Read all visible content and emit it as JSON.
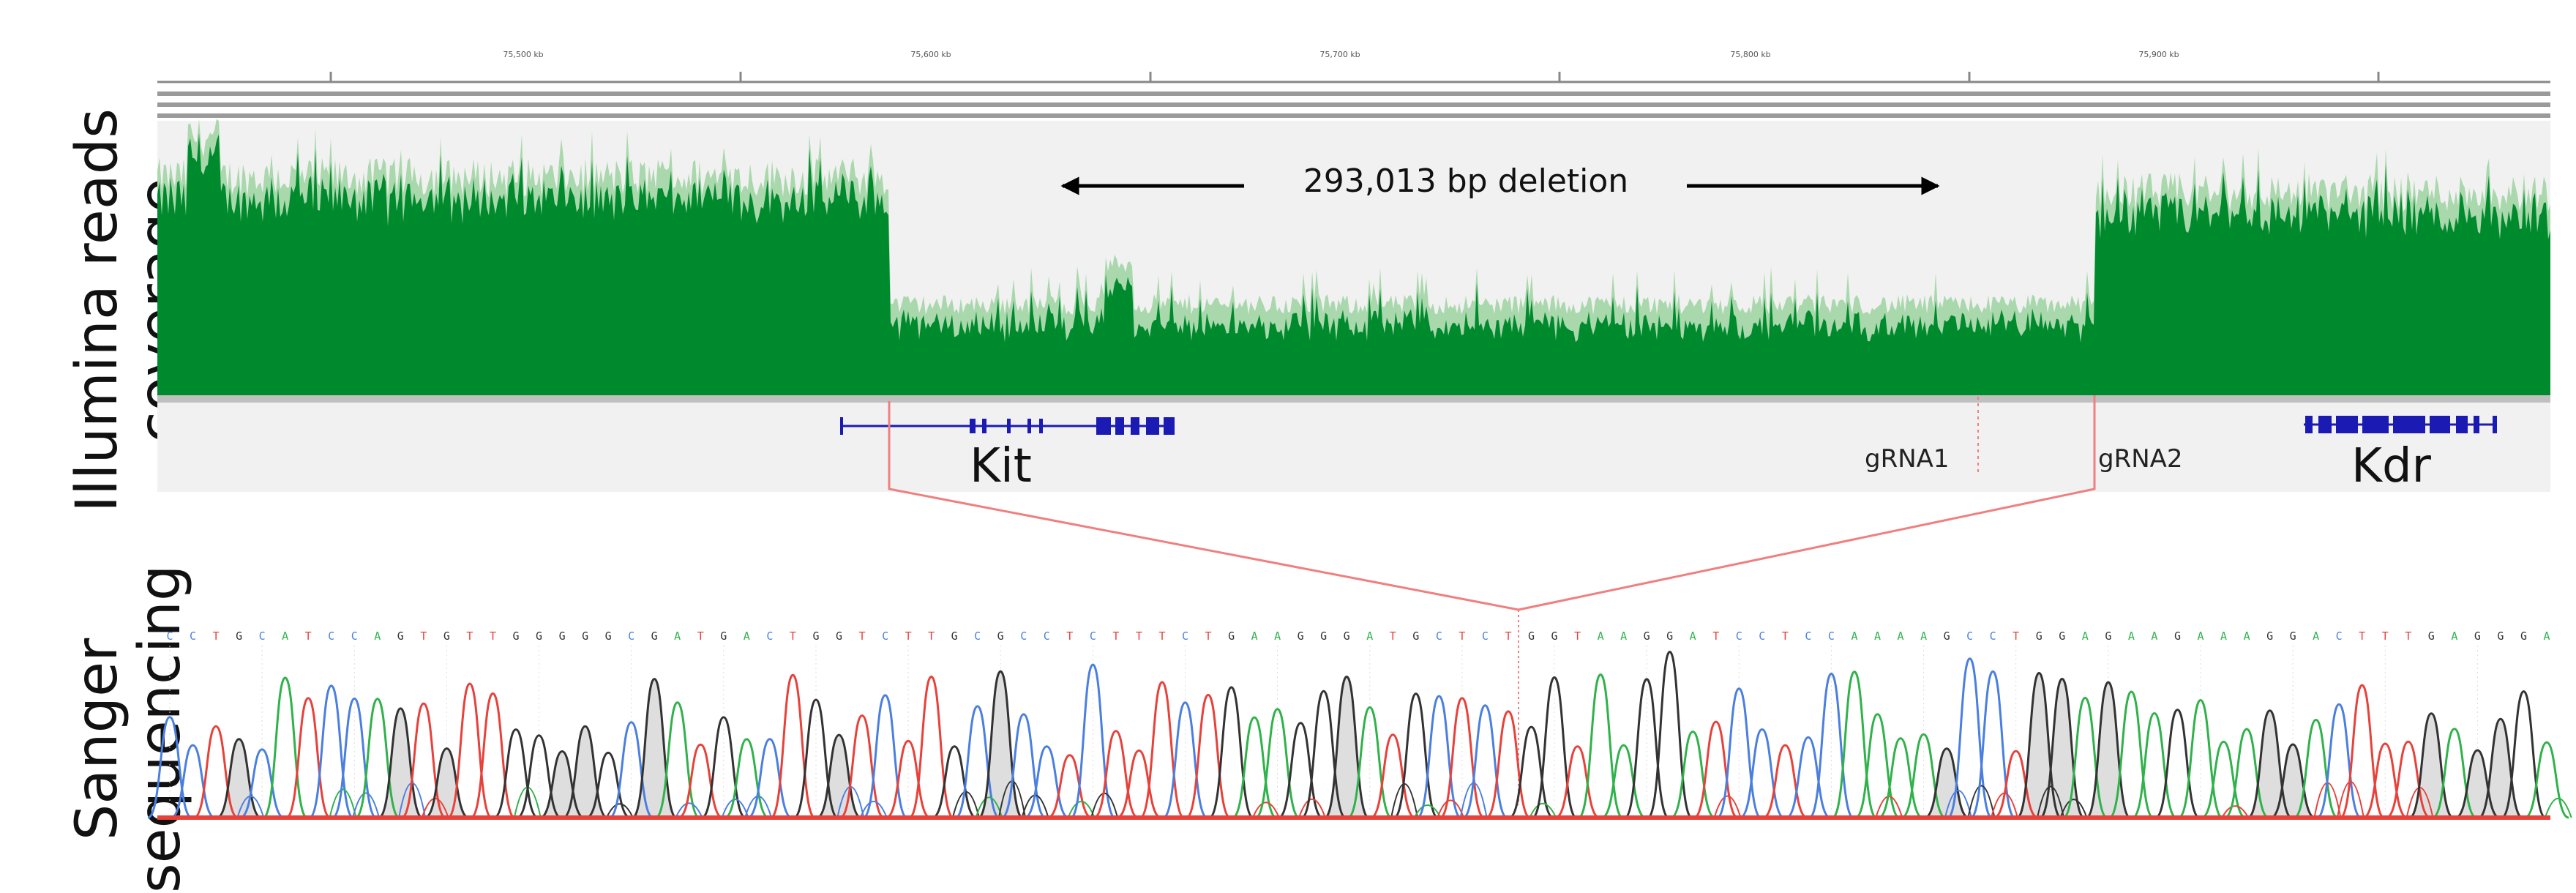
{
  "labels": {
    "illumina_line1": "Illumina reads",
    "illumina_line2": "coverage",
    "sanger_line1": "Sanger",
    "sanger_line2": "sequencing"
  },
  "ruler": {
    "tick_labels": [
      "75,500 kb",
      "75,600 kb",
      "75,700 kb",
      "75,800 kb",
      "75,900 kb"
    ]
  },
  "annotation": {
    "deletion": "293,013 bp deletion"
  },
  "genes": [
    "Kit",
    "Kdr"
  ],
  "grnas": [
    "gRNA1",
    "gRNA2"
  ],
  "colors": {
    "coverage_dark": "#008a2e",
    "coverage_light": "#a8d8ab",
    "gene_blue": "#1b1bb4",
    "junction_pink": "#f07f7f",
    "base_A": "#2fb24a",
    "base_C": "#4a7fe0",
    "base_G": "#333333",
    "base_T": "#e8413a"
  },
  "sanger": {
    "sequence": "CCTGCATCCAGTGTTGGGGGCGATGACTGGTCTTGCGCCTCTTTCTGAAGGGATGCTCTGGTAAGGATCCTCCAAAAGCCTGGAGAAGAAAGGACTTTGAGGGA"
  }
}
